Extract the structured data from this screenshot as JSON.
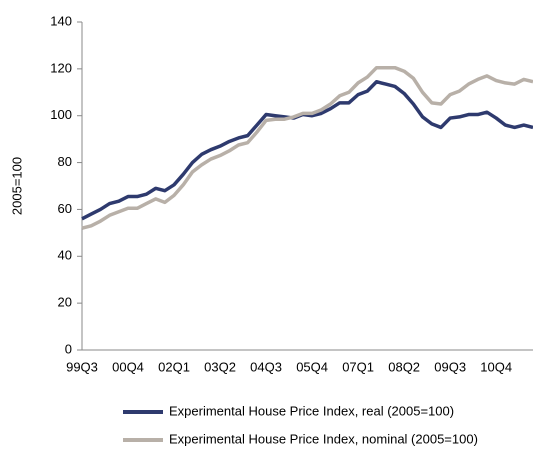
{
  "chart_data": {
    "type": "line",
    "categories": [
      "99Q3",
      null,
      null,
      null,
      null,
      "00Q4",
      null,
      null,
      null,
      null,
      "02Q1",
      null,
      null,
      null,
      null,
      "03Q2",
      null,
      null,
      null,
      null,
      "04Q3",
      null,
      null,
      null,
      null,
      "05Q4",
      null,
      null,
      null,
      null,
      "07Q1",
      null,
      null,
      null,
      null,
      "08Q2",
      null,
      null,
      null,
      null,
      "09Q3",
      null,
      null,
      null,
      null,
      "10Q4",
      null,
      null,
      null,
      null
    ],
    "series": [
      {
        "name": "Experimental House Price Index, real (2005=100)",
        "color": "#2e3a6e",
        "values": [
          56,
          58,
          60,
          62.5,
          63.5,
          65.5,
          65.5,
          66.5,
          69,
          68,
          70.5,
          75,
          80,
          83.5,
          85.5,
          87,
          89,
          90.5,
          91.5,
          96,
          100.5,
          100,
          99.5,
          99,
          100.5,
          100,
          101,
          103,
          105.5,
          105.5,
          109,
          110.5,
          114.5,
          113.5,
          112.5,
          109.5,
          105,
          99.5,
          96.5,
          95,
          99,
          99.5,
          100.5,
          100.5,
          101.5,
          99,
          96,
          95,
          96,
          95
        ]
      },
      {
        "name": "Experimental House Price Index, nominal (2005=100)",
        "color": "#b8b0a8",
        "values": [
          52,
          53,
          55,
          57.5,
          59,
          60.5,
          60.5,
          62.5,
          64.5,
          63,
          66,
          70.5,
          76,
          79,
          81.5,
          83,
          85,
          87.5,
          88.5,
          93,
          98,
          98.5,
          98.5,
          99.5,
          101,
          101,
          102.5,
          105,
          108.5,
          110,
          114,
          116.5,
          120.5,
          120.5,
          120.5,
          119,
          116,
          110,
          105.5,
          105,
          109,
          110.5,
          113.5,
          115.5,
          117,
          115,
          114,
          113.5,
          115.5,
          114.5
        ]
      }
    ],
    "ylabel": "2005=100",
    "ylim": [
      0,
      140
    ],
    "yticks": [
      0,
      20,
      40,
      60,
      80,
      100,
      120,
      140
    ]
  }
}
